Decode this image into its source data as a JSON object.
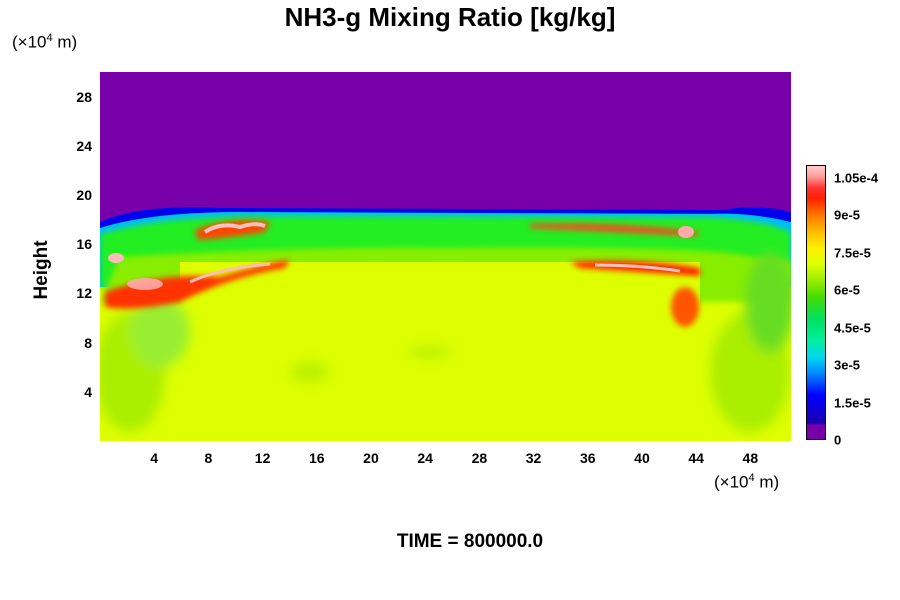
{
  "chart_data": {
    "type": "heatmap",
    "title": "NH3-g Mixing Ratio [kg/kg]",
    "ylabel": "Height",
    "y_unit": {
      "prefix": "(×10",
      "exp": "4",
      "suffix": " m)"
    },
    "x_unit": {
      "prefix": "(×10",
      "exp": "4",
      "suffix": " m)"
    },
    "xlim": [
      0,
      51
    ],
    "ylim": [
      0,
      30
    ],
    "x_ticks": [
      "4",
      "8",
      "12",
      "16",
      "20",
      "24",
      "28",
      "32",
      "36",
      "40",
      "44",
      "48"
    ],
    "y_ticks": [
      "4",
      "8",
      "12",
      "16",
      "20",
      "24",
      "28"
    ],
    "colorbar": {
      "range": [
        0,
        0.00011
      ],
      "tick_labels": [
        "1.05e-4",
        "9e-5",
        "7.5e-5",
        "6e-5",
        "4.5e-5",
        "3e-5",
        "1.5e-5",
        "0"
      ]
    },
    "regions": [
      {
        "desc": "upper layer",
        "y_range": [
          18.5,
          30
        ],
        "value": 0
      },
      {
        "desc": "interior",
        "y_range": [
          0,
          15
        ],
        "value": 7.8e-05
      },
      {
        "desc": "upper band",
        "y_range": [
          15,
          18.5
        ],
        "value": 6e-05
      },
      {
        "desc": "peak streak 1",
        "x_range": [
          1,
          14
        ],
        "y_range": [
          12,
          14
        ],
        "value": 0.00011
      },
      {
        "desc": "peak streak 2",
        "x_range": [
          36,
          42
        ],
        "y_range": [
          13.2,
          14.5
        ],
        "value": 0.00011
      },
      {
        "desc": "peak streak 3",
        "x_range": [
          7,
          12
        ],
        "y_range": [
          16.5,
          18
        ],
        "value": 0.00011
      },
      {
        "desc": "peak streak 4",
        "x_range": [
          34,
          43
        ],
        "y_range": [
          16.6,
          17.5
        ],
        "value": 0.0001
      }
    ],
    "grid": false,
    "legend": "colorbar-right"
  },
  "footer": {
    "time_label": "TIME = 800000.0"
  }
}
